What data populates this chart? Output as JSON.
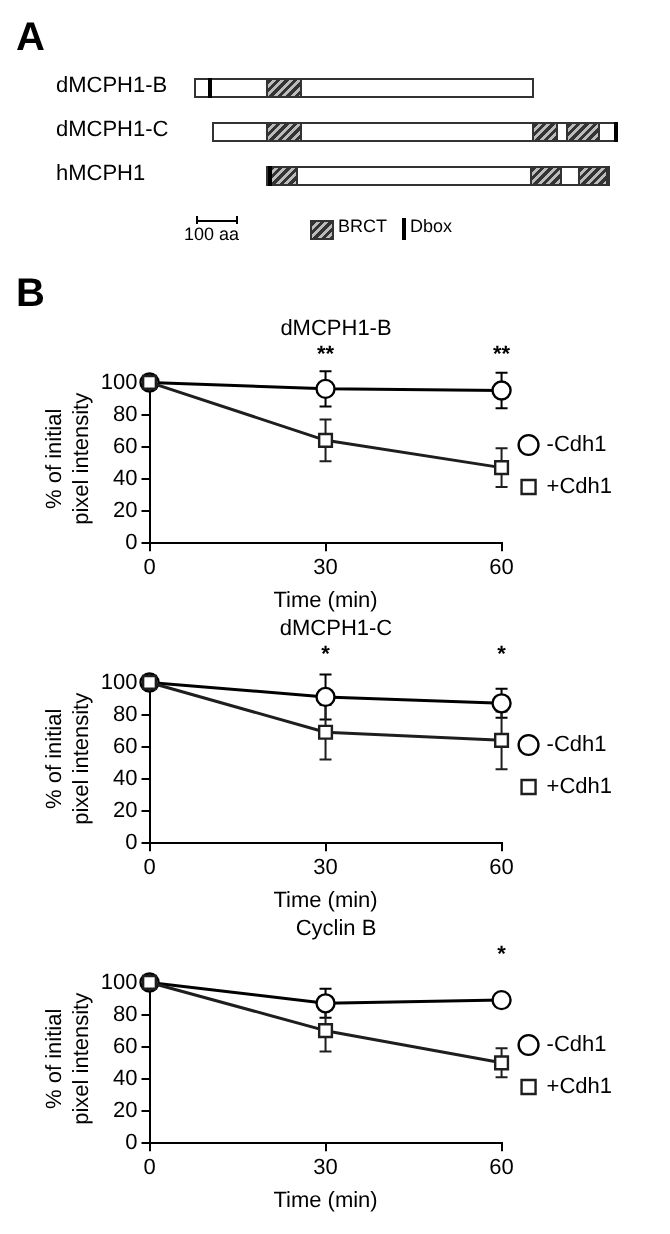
{
  "chart_data": [
    {
      "type": "other",
      "title": "A",
      "annotations": [
        "dMCPH1-B",
        "dMCPH1-C",
        "hMCPH1",
        "100 aa",
        "BRCT",
        "Dbox"
      ]
    },
    {
      "type": "line",
      "title": "B",
      "subtitle": "dMCPH1-B",
      "xlabel": "Time (min)",
      "ylabel": "% of initial\npixel intensity",
      "x": [
        0,
        30,
        60
      ],
      "xlim": [
        0,
        60
      ],
      "xticks": [
        0,
        30,
        60
      ],
      "ylim": [
        0,
        105
      ],
      "yticks": [
        0,
        20,
        40,
        60,
        80,
        100
      ],
      "legend": "right",
      "annotations": [
        "**",
        "**"
      ],
      "series": [
        {
          "name": "-Cdh1",
          "color": "#000000",
          "marker": "circle",
          "values": [
            100,
            96,
            95
          ],
          "errors": [
            null,
            11,
            11
          ]
        },
        {
          "name": "+Cdh1",
          "color": "#1e1e1e",
          "marker": "square",
          "values": [
            100,
            64,
            47
          ],
          "errors": [
            null,
            13,
            12
          ]
        }
      ]
    },
    {
      "type": "line",
      "title": "dMCPH1-C",
      "xlabel": "Time (min)",
      "ylabel": "% of initial\npixel intensity",
      "x": [
        0,
        30,
        60
      ],
      "xlim": [
        0,
        60
      ],
      "xticks": [
        0,
        30,
        60
      ],
      "ylim": [
        0,
        105
      ],
      "yticks": [
        0,
        20,
        40,
        60,
        80,
        100
      ],
      "legend": "right",
      "annotations": [
        "*",
        "*"
      ],
      "series": [
        {
          "name": "-Cdh1",
          "color": "#000000",
          "marker": "circle",
          "values": [
            100,
            91,
            87
          ],
          "errors": [
            null,
            14,
            9
          ]
        },
        {
          "name": "+Cdh1",
          "color": "#1e1e1e",
          "marker": "square",
          "values": [
            100,
            69,
            64
          ],
          "errors": [
            null,
            17,
            18
          ]
        }
      ]
    },
    {
      "type": "line",
      "title": "Cyclin B",
      "xlabel": "Time (min)",
      "ylabel": "% of initial\npixel intensity",
      "x": [
        0,
        30,
        60
      ],
      "xlim": [
        0,
        60
      ],
      "xticks": [
        0,
        30,
        60
      ],
      "ylim": [
        0,
        105
      ],
      "yticks": [
        0,
        20,
        40,
        60,
        80,
        100
      ],
      "legend": "right",
      "annotations": [
        "*"
      ],
      "series": [
        {
          "name": "-Cdh1",
          "color": "#000000",
          "marker": "circle",
          "values": [
            100,
            87,
            89
          ],
          "errors": [
            null,
            9,
            null
          ]
        },
        {
          "name": "+Cdh1",
          "color": "#1e1e1e",
          "marker": "square",
          "values": [
            100,
            70,
            50
          ],
          "errors": [
            null,
            13,
            9
          ]
        }
      ]
    }
  ]
}
